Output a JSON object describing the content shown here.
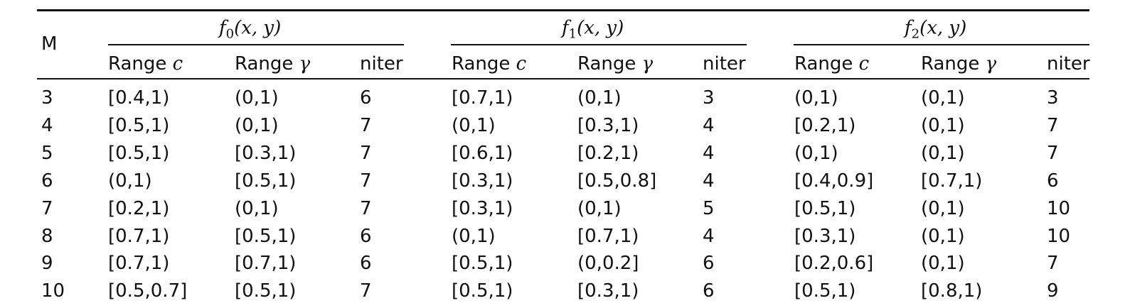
{
  "table": {
    "corner": "M",
    "groups": [
      {
        "function": "f",
        "index": "0",
        "args": "(x, y)"
      },
      {
        "function": "f",
        "index": "1",
        "args": "(x, y)"
      },
      {
        "function": "f",
        "index": "2",
        "args": "(x, y)"
      }
    ],
    "subheaders": [
      {
        "text": "Range",
        "symbol": "c"
      },
      {
        "text": "Range",
        "symbol": "γ"
      },
      {
        "text": "niter"
      }
    ],
    "rows": [
      [
        3,
        "[0.4,1)",
        "(0,1)",
        6,
        "[0.7,1)",
        "(0,1)",
        3,
        "(0,1)",
        "(0,1)",
        3
      ],
      [
        4,
        "[0.5,1)",
        "(0,1)",
        7,
        "(0,1)",
        "[0.3,1)",
        4,
        "[0.2,1)",
        "(0,1)",
        7
      ],
      [
        5,
        "[0.5,1)",
        "[0.3,1)",
        7,
        "[0.6,1)",
        "[0.2,1)",
        4,
        "(0,1)",
        "(0,1)",
        7
      ],
      [
        6,
        "(0,1)",
        "[0.5,1)",
        7,
        "[0.3,1)",
        "[0.5,0.8]",
        4,
        "[0.4,0.9]",
        "[0.7,1)",
        6
      ],
      [
        7,
        "[0.2,1)",
        "(0,1)",
        7,
        "[0.3,1)",
        "(0,1)",
        5,
        "[0.5,1)",
        "(0,1)",
        10
      ],
      [
        8,
        "[0.7,1)",
        "[0.5,1)",
        6,
        "(0,1)",
        "[0.7,1)",
        4,
        "[0.3,1)",
        "(0,1)",
        10
      ],
      [
        9,
        "[0.7,1)",
        "[0.7,1)",
        6,
        "[0.5,1)",
        "(0,0.2]",
        6,
        "[0.2,0.6]",
        "(0,1)",
        7
      ],
      [
        10,
        "[0.5,0.7]",
        "[0.5,1)",
        7,
        "[0.5,1)",
        "[0.3,1)",
        6,
        "[0.5,1)",
        "[0.8,1)",
        9
      ]
    ]
  }
}
